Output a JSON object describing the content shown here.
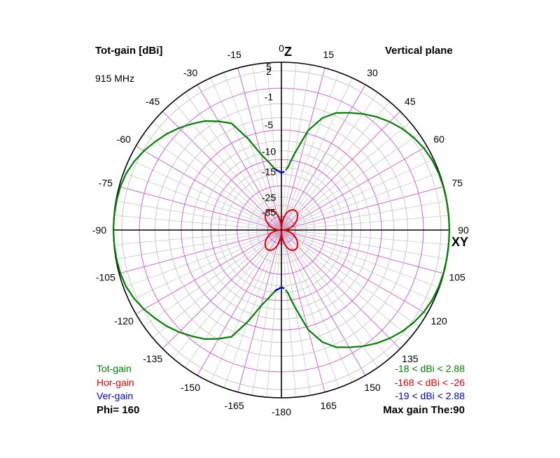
{
  "chart_data": {
    "type": "polar",
    "title": "Tot-gain [dBi]",
    "plane": "Vertical plane",
    "frequency": "915 MHz",
    "axis_top": "Z",
    "axis_right": "XY",
    "phi": "Phi= 160",
    "max_gain": "Max gain The:90",
    "angle_labels": [
      {
        "deg": 0,
        "text": "0"
      },
      {
        "deg": 15,
        "text": "15"
      },
      {
        "deg": 30,
        "text": "30"
      },
      {
        "deg": 45,
        "text": "45"
      },
      {
        "deg": 60,
        "text": "60"
      },
      {
        "deg": 75,
        "text": "75"
      },
      {
        "deg": 90,
        "text": "90"
      },
      {
        "deg": 105,
        "text": "105"
      },
      {
        "deg": 120,
        "text": "120"
      },
      {
        "deg": 135,
        "text": "135"
      },
      {
        "deg": 150,
        "text": "150"
      },
      {
        "deg": 165,
        "text": "165"
      },
      {
        "deg": 180,
        "text": "-180"
      },
      {
        "deg": -165,
        "text": "-165"
      },
      {
        "deg": -150,
        "text": "-150"
      },
      {
        "deg": -135,
        "text": "-135"
      },
      {
        "deg": -120,
        "text": "-120"
      },
      {
        "deg": -105,
        "text": "-105"
      },
      {
        "deg": -90,
        "text": "-90"
      },
      {
        "deg": -75,
        "text": "-75"
      },
      {
        "deg": -60,
        "text": "-60"
      },
      {
        "deg": -45,
        "text": "-45"
      },
      {
        "deg": -30,
        "text": "-30"
      },
      {
        "deg": -15,
        "text": "-15"
      }
    ],
    "radial_labels": [
      "5",
      "2",
      "-1",
      "-5",
      "-10",
      "-15",
      "-25",
      "-35"
    ],
    "legend": [
      {
        "name": "Tot-gain",
        "range": "-18 < dBi < 2.88",
        "color": "#008000"
      },
      {
        "name": "Hor-gain",
        "range": "-168 < dBi < -26",
        "color": "#e00000"
      },
      {
        "name": "Ver-gain",
        "range": "-19 < dBi < 2.88",
        "color": "#0000cc"
      }
    ],
    "series": [
      {
        "name": "Tot-gain",
        "color": "#008000",
        "theta": [
          4,
          6,
          8,
          10,
          15,
          20,
          25,
          30,
          35,
          40,
          45,
          50,
          55,
          60,
          65,
          70,
          75,
          80,
          85,
          90
        ],
        "gain_dbi_right": [
          -14.8,
          -13.8,
          -12.0,
          -10.2,
          -5.5,
          -3.0,
          -1.6,
          -0.8,
          0.0,
          0.7,
          1.3,
          1.8,
          2.2,
          2.5,
          2.7,
          2.8,
          2.85,
          2.86,
          2.87,
          2.88
        ],
        "gain_dbi_left": [
          -15.0,
          -14.4,
          -13.5,
          -12.6,
          -10.2,
          -6.5,
          -3.2,
          -2.1,
          -1.1,
          -0.4,
          0.3,
          0.9,
          1.4,
          1.9,
          2.3,
          2.6,
          2.75,
          2.82,
          2.86,
          2.88
        ]
      },
      {
        "name": "Hor-gain",
        "color": "#e00000",
        "peak_dbi": -26,
        "shape": "four-lobe"
      },
      {
        "name": "Ver-gain",
        "color": "#0000cc",
        "shape": "follows Tot-gain"
      }
    ]
  }
}
